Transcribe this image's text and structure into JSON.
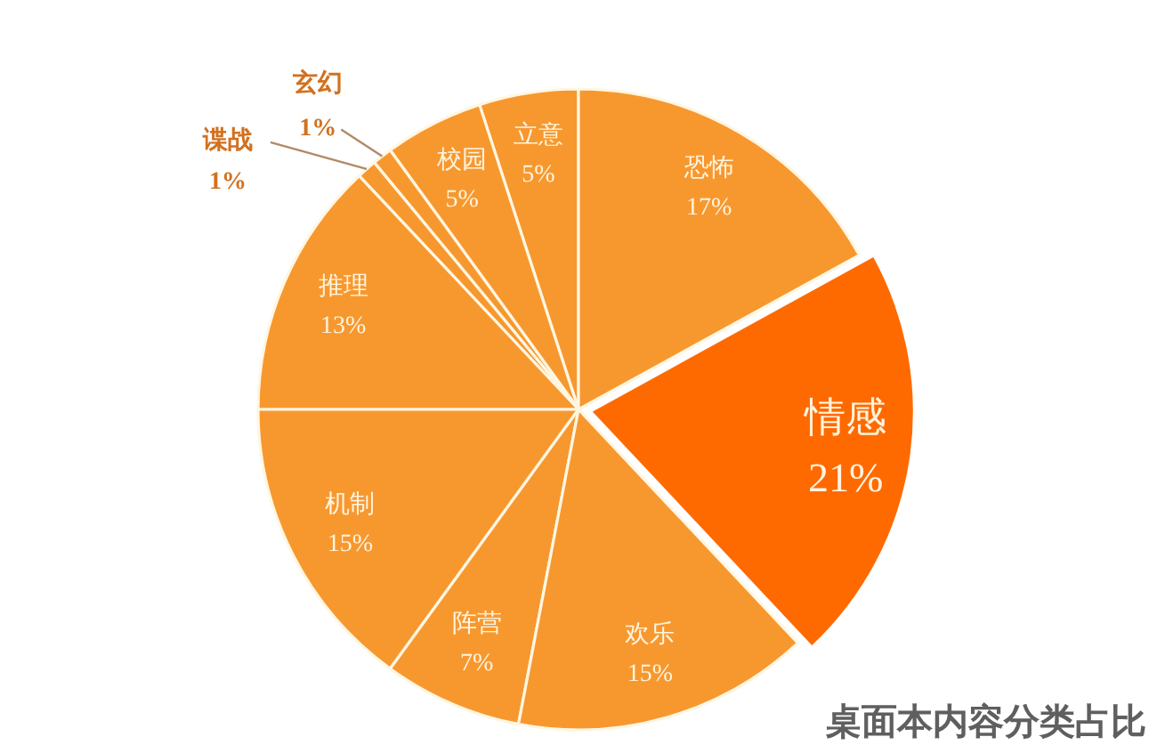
{
  "chart_data": {
    "type": "pie",
    "title": "桌面本内容分类占比",
    "categories": [
      "立意",
      "校园",
      "玄幻",
      "谍战",
      "推理",
      "机制",
      "阵营",
      "欢乐",
      "情感",
      "恐怖"
    ],
    "values": [
      5,
      5,
      1,
      1,
      13,
      15,
      7,
      15,
      21,
      17
    ],
    "value_labels": [
      "5%",
      "5%",
      "1%",
      "1%",
      "13%",
      "15%",
      "7%",
      "15%",
      "21%",
      "17%"
    ],
    "colors": [
      "#f7982f",
      "#f7982f",
      "#f7982f",
      "#f7982f",
      "#f7982f",
      "#f7982f",
      "#f7982f",
      "#f7982f",
      "#ff6a00",
      "#f7982f"
    ]
  }
}
